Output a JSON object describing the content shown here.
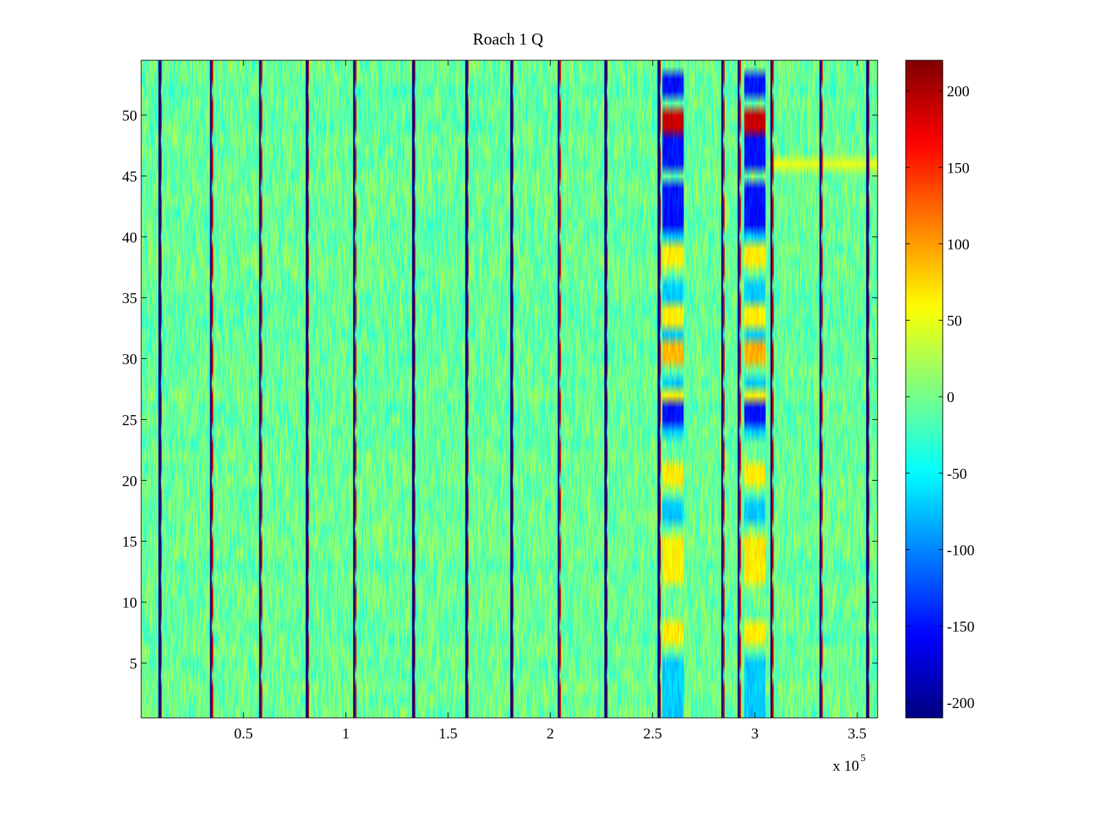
{
  "chart_data": {
    "type": "heatmap",
    "title": "Roach 1 Q",
    "xlabel": "",
    "ylabel": "",
    "x_exponent_label": "x 10",
    "x_exponent_power": "5",
    "xlim": [
      0,
      360000
    ],
    "ylim": [
      0.5,
      54.5
    ],
    "x_ticks": [
      50000,
      100000,
      150000,
      200000,
      250000,
      300000,
      350000
    ],
    "x_tick_labels": [
      "0.5",
      "1",
      "1.5",
      "2",
      "2.5",
      "3",
      "3.5"
    ],
    "y_ticks": [
      5,
      10,
      15,
      20,
      25,
      30,
      35,
      40,
      45,
      50
    ],
    "y_tick_labels": [
      "5",
      "10",
      "15",
      "20",
      "25",
      "30",
      "35",
      "40",
      "45",
      "50"
    ],
    "rows": 54,
    "colorbar": {
      "colormap": "jet",
      "clim": [
        -210,
        220
      ],
      "ticks": [
        200,
        150,
        100,
        50,
        0,
        -50,
        -100,
        -150,
        -200
      ],
      "tick_labels": [
        "200",
        "150",
        "100",
        "50",
        "0",
        "-50",
        "-100",
        "-150",
        "-200"
      ]
    },
    "vertical_stripes": [
      9000,
      34000,
      58000,
      81000,
      104000,
      133000,
      159000,
      181000,
      204000,
      227000,
      253000,
      284000,
      292000,
      308000,
      332000,
      355000
    ],
    "background_value_range": [
      -40,
      30
    ],
    "bands": [
      {
        "x_range": [
          255000,
          265000
        ],
        "rows": [
          49,
          50
        ],
        "value": 190
      },
      {
        "x_range": [
          295000,
          305000
        ],
        "rows": [
          49,
          50
        ],
        "value": 190
      },
      {
        "x_range": [
          255000,
          265000
        ],
        "rows": [
          41,
          42,
          43,
          44,
          46,
          47,
          48,
          52,
          53
        ],
        "value": -150
      },
      {
        "x_range": [
          295000,
          305000
        ],
        "rows": [
          41,
          42,
          43,
          44,
          46,
          47,
          48,
          52,
          53
        ],
        "value": -150
      },
      {
        "x_range": [
          255000,
          265000
        ],
        "rows": [
          25,
          26
        ],
        "value": -150
      },
      {
        "x_range": [
          295000,
          305000
        ],
        "rows": [
          25,
          26
        ],
        "value": -150
      },
      {
        "x_range": [
          255000,
          265000
        ],
        "rows": [
          30,
          31
        ],
        "value": 90
      },
      {
        "x_range": [
          295000,
          305000
        ],
        "rows": [
          30,
          31
        ],
        "value": 90
      },
      {
        "x_range": [
          255000,
          265000
        ],
        "rows": [
          7,
          8,
          12,
          13,
          14,
          15,
          20,
          21,
          27,
          33,
          34,
          38,
          39
        ],
        "value": 65
      },
      {
        "x_range": [
          295000,
          305000
        ],
        "rows": [
          7,
          8,
          12,
          13,
          14,
          15,
          20,
          21,
          27,
          33,
          34,
          38,
          39
        ],
        "value": 65
      },
      {
        "x_range": [
          255000,
          265000
        ],
        "rows": [
          1,
          2,
          3,
          4,
          5,
          17,
          18,
          24,
          28,
          32,
          35,
          36,
          40
        ],
        "value": -70
      },
      {
        "x_range": [
          295000,
          305000
        ],
        "rows": [
          1,
          2,
          3,
          4,
          5,
          17,
          18,
          24,
          28,
          32,
          35,
          36,
          40
        ],
        "value": -70
      },
      {
        "x_range": [
          308000,
          360000
        ],
        "rows": [
          46
        ],
        "value": 50
      }
    ]
  }
}
